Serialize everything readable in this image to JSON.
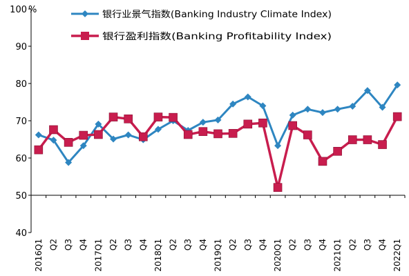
{
  "chart_data": {
    "type": "line",
    "title": "",
    "xlabel": "",
    "ylabel": "",
    "y_unit_label": "%",
    "ylim": [
      40,
      100
    ],
    "yticks": [
      40,
      50,
      60,
      70,
      80,
      90,
      100
    ],
    "grid": false,
    "legend_position": "top",
    "x": [
      "2016Q1",
      "Q2",
      "Q3",
      "Q4",
      "2017Q1",
      "Q2",
      "Q3",
      "Q4",
      "2018Q1",
      "Q2",
      "Q3",
      "Q4",
      "2019Q1",
      "Q2",
      "Q3",
      "Q4",
      "2020Q1",
      "Q2",
      "Q3",
      "Q4",
      "2021Q1",
      "Q2",
      "Q3",
      "Q4",
      "2022Q1"
    ],
    "series": [
      {
        "name": "银行业景气指数(Banking Industry Climate Index)",
        "color": "#2e86c1",
        "marker": "diamond",
        "values": [
          66.2,
          64.8,
          58.8,
          63.3,
          69.1,
          65.1,
          66.2,
          64.9,
          67.7,
          70.0,
          67.4,
          69.6,
          70.2,
          74.5,
          76.4,
          74.0,
          63.3,
          71.5,
          73.1,
          72.2,
          73.1,
          73.9,
          78.1,
          73.6,
          79.6
        ]
      },
      {
        "name": "银行盈利指数(Banking Profitability Index)",
        "color": "#c81d4e",
        "marker": "square",
        "values": [
          62.2,
          67.6,
          64.2,
          66.1,
          66.3,
          71.0,
          70.5,
          65.7,
          71.0,
          70.9,
          66.3,
          67.1,
          66.5,
          66.6,
          69.1,
          69.4,
          52.1,
          68.7,
          66.2,
          59.1,
          61.8,
          64.9,
          64.9,
          63.6,
          71.1
        ]
      }
    ]
  }
}
